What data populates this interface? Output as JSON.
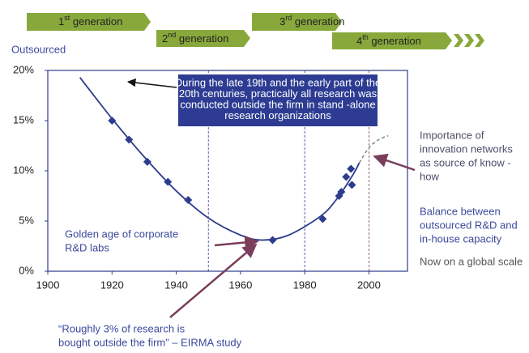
{
  "generations": [
    {
      "num": "1",
      "sup": "st",
      "rest": " generation"
    },
    {
      "num": "2",
      "sup": "nd",
      "rest": " generation"
    },
    {
      "num": "3",
      "sup": "rd",
      "rest": " generation"
    },
    {
      "num": "4",
      "sup": "th",
      "rest": " generation"
    }
  ],
  "chart_data": {
    "type": "scatter",
    "y_label": "Outsourced",
    "xlim": [
      1900,
      2012
    ],
    "ylim": [
      0,
      20
    ],
    "xticks": [
      1900,
      1920,
      1940,
      1960,
      1980,
      2000
    ],
    "yticks": [
      {
        "value": 0,
        "label": "0%"
      },
      {
        "value": 5,
        "label": "5%"
      },
      {
        "value": 10,
        "label": "10%"
      },
      {
        "value": 15,
        "label": "15%"
      },
      {
        "value": 20,
        "label": "20%"
      }
    ],
    "vlines": [
      1950,
      1980,
      2000
    ],
    "series": [
      {
        "color": "#2e3c8e",
        "marker": "diamond",
        "x": [
          1920,
          1925.3,
          1931,
          1937.4,
          1943.7,
          1970,
          1985.6,
          1990.7,
          1991.4,
          1992.9,
          1994.4,
          1994.7
        ],
        "values": [
          15.0,
          13.1,
          10.9,
          8.9,
          7.1,
          3.1,
          5.2,
          7.5,
          7.9,
          9.4,
          10.2,
          8.6
        ]
      },
      {
        "color": "#2e3c8e",
        "marker": "line",
        "x": [
          1910,
          1920,
          1930,
          1940,
          1950,
          1960,
          1967,
          1975,
          1985,
          1990,
          1995,
          1997
        ],
        "values": [
          19.3,
          15.2,
          11.4,
          8.0,
          5.3,
          3.6,
          3.1,
          3.6,
          5.5,
          7.2,
          9.6,
          10.8
        ]
      },
      {
        "color": "#8c8c8c",
        "marker": "dashed",
        "x": [
          1997,
          2000,
          2003,
          2006
        ],
        "values": [
          10.8,
          12.3,
          13.1,
          13.5
        ]
      }
    ],
    "box_note": [
      "During the late 19th and the early part of the",
      "20th centuries, practically all research was",
      "conducted outside the firm in stand -alone",
      "research organizations"
    ],
    "golden_age": [
      "Golden age of corporate",
      "R&D labs"
    ],
    "quote": [
      "“Roughly 3% of research is",
      "bought outside the firm” – EIRMA study"
    ],
    "networks_note": [
      "Importance of",
      "innovation networks",
      "as source of know -",
      "how"
    ],
    "balance_note": [
      "Balance between",
      "outsourced R&D and",
      "in-house capacity"
    ],
    "global_note": "Now on a global scale"
  }
}
